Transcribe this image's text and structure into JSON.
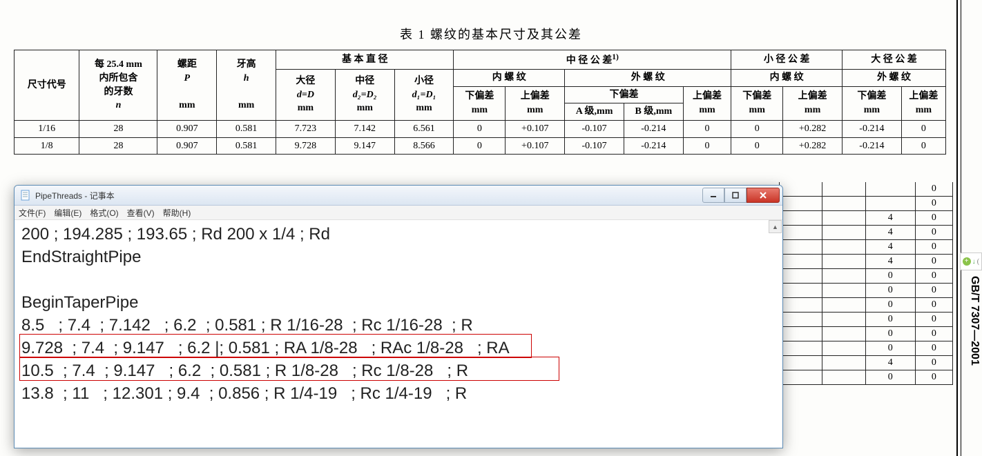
{
  "table_title": "表 1  螺纹的基本尺寸及其公差",
  "side_label": "GB/T 7307—2001",
  "headers": {
    "size_code": "尺寸代号",
    "teeth_per_25": "每 25.4 mm\n内所包含\n的牙数",
    "teeth_unit": "n",
    "pitch": "螺距",
    "pitch_sym": "P",
    "height": "牙高",
    "height_sym": "h",
    "basic_dia": "基 本 直 径",
    "major": "大径",
    "major_sym": "d=D",
    "pitch_dia": "中径",
    "pitch_dia_sym": "d₂=D₂",
    "minor": "小径",
    "minor_sym": "d₁=D₁",
    "mid_tol": "中 径 公 差",
    "mid_tol_sup": "1)",
    "internal": "内 螺 纹",
    "external": "外 螺 纹",
    "lower_dev": "下偏差",
    "upper_dev": "上偏差",
    "a_class": "A 级,mm",
    "b_class": "B 级,mm",
    "minor_tol": "小 径 公 差",
    "major_tol": "大 径 公 差",
    "mm": "mm"
  },
  "rows": [
    {
      "size": "1/16",
      "n": "28",
      "p": "0.907",
      "h": "0.581",
      "D": "7.723",
      "D2": "7.142",
      "D1": "6.561",
      "il": "0",
      "iu": "+0.107",
      "ea": "-0.107",
      "eb": "-0.214",
      "eu": "0",
      "ml": "0",
      "mu": "+0.282",
      "Ml": "-0.214",
      "Mu": "0"
    },
    {
      "size": "1/8",
      "n": "28",
      "p": "0.907",
      "h": "0.581",
      "D": "9.728",
      "D2": "9.147",
      "D1": "8.566",
      "il": "0",
      "iu": "+0.107",
      "ea": "-0.107",
      "eb": "-0.214",
      "eu": "0",
      "ml": "0",
      "mu": "+0.282",
      "Ml": "-0.214",
      "Mu": "0"
    }
  ],
  "trailing_rows": [
    [
      "0"
    ],
    [
      "0"
    ],
    [
      "4",
      "0"
    ],
    [
      "4",
      "0"
    ],
    [
      "4",
      "0"
    ],
    [
      "4",
      "0"
    ],
    [
      "0",
      "0"
    ],
    [
      "0",
      "0"
    ],
    [
      "0",
      "0"
    ],
    [
      "0",
      "0"
    ],
    [
      "0",
      "0"
    ],
    [
      "0",
      "0"
    ],
    [
      "4",
      "0"
    ],
    [
      "0",
      "0"
    ]
  ],
  "notepad": {
    "title": "PipeThreads - 记事本",
    "menus": [
      "文件(F)",
      "编辑(E)",
      "格式(O)",
      "查看(V)",
      "帮助(H)"
    ],
    "lines": [
      "200 ; 194.285 ; 193.65 ; Rd 200 x 1/4 ; Rd",
      "EndStraightPipe",
      "",
      "BeginTaperPipe",
      "8.5   ; 7.4  ; 7.142   ; 6.2  ; 0.581 ; R 1/16-28  ; Rc 1/16-28  ; R",
      "9.728  ; 7.4  ; 9.147   ; 6.2 |; 0.581 ; RA 1/8-28   ; RAc 1/8-28   ; RA",
      "10.5  ; 7.4  ; 9.147   ; 6.2  ; 0.581 ; R 1/8-28   ; Rc 1/8-28   ; R",
      "13.8  ; 11   ; 12.301 ; 9.4  ; 0.856 ; R 1/4-19   ; Rc 1/4-19   ; R"
    ]
  }
}
